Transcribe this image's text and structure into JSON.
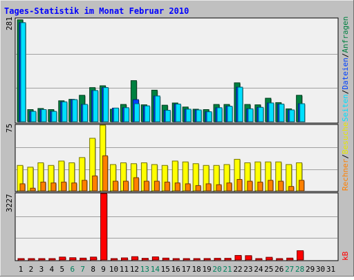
{
  "title": "Tages-Statistik im Monat Februar 2010",
  "legend": {
    "anfragen": "Anfragen",
    "dateien": "Dateien",
    "seiten": "Seiten",
    "besuche": "Besuche",
    "rechner": "Rechner",
    "kb": "kB",
    "slash": "/"
  },
  "colors": {
    "background": "#c0c0c0",
    "plot": "#f0f0f0",
    "title": "#0000ff",
    "anfragen": "#008040",
    "dateien": "#0040ff",
    "seiten": "#00e0ff",
    "besuche": "#ffff00",
    "rechner": "#ff8000",
    "kb": "#ff0000",
    "weekend_label": "#00805c",
    "weekday_label": "#000000"
  },
  "chart_data": [
    {
      "type": "bar",
      "categories": [
        "1",
        "2",
        "3",
        "4",
        "5",
        "6",
        "7",
        "8",
        "9",
        "10",
        "11",
        "12",
        "13",
        "14",
        "15",
        "16",
        "17",
        "18",
        "19",
        "20",
        "21",
        "22",
        "23",
        "24",
        "25",
        "26",
        "27",
        "28",
        "29",
        "30",
        "31"
      ],
      "weekend_days": [
        "6",
        "7",
        "13",
        "14",
        "20",
        "21",
        "27",
        "28"
      ],
      "ymax_label": "281",
      "ylim": [
        0,
        281
      ],
      "series": [
        {
          "name": "Anfragen",
          "values": [
            278,
            33,
            36,
            33,
            57,
            61,
            72,
            93,
            98,
            34,
            47,
            112,
            46,
            86,
            45,
            51,
            40,
            34,
            33,
            47,
            47,
            106,
            47,
            46,
            64,
            52,
            35,
            72,
            0,
            0,
            0
          ]
        },
        {
          "name": "Dateien",
          "values": [
            270,
            28,
            33,
            28,
            54,
            60,
            47,
            85,
            93,
            37,
            38,
            60,
            43,
            70,
            31,
            48,
            34,
            32,
            27,
            38,
            42,
            94,
            35,
            39,
            51,
            48,
            32,
            49,
            0,
            0,
            0
          ]
        },
        {
          "name": "Seiten",
          "values": [
            270,
            28,
            33,
            28,
            54,
            60,
            47,
            85,
            93,
            37,
            38,
            49,
            43,
            70,
            31,
            48,
            34,
            32,
            27,
            38,
            42,
            94,
            35,
            39,
            51,
            48,
            32,
            49,
            0,
            0,
            0
          ]
        }
      ]
    },
    {
      "type": "bar",
      "categories": [
        "1",
        "2",
        "3",
        "4",
        "5",
        "6",
        "7",
        "8",
        "9",
        "10",
        "11",
        "12",
        "13",
        "14",
        "15",
        "16",
        "17",
        "18",
        "19",
        "20",
        "21",
        "22",
        "23",
        "24",
        "25",
        "26",
        "27",
        "28",
        "29",
        "30",
        "31"
      ],
      "ymax_label": "75",
      "ylim": [
        0,
        75
      ],
      "series": [
        {
          "name": "Besuche",
          "values": [
            29,
            27,
            32,
            29,
            34,
            32,
            38,
            60,
            75,
            30,
            32,
            31,
            32,
            30,
            29,
            34,
            33,
            31,
            29,
            29,
            30,
            36,
            32,
            33,
            33,
            33,
            30,
            32,
            0,
            0,
            0
          ]
        },
        {
          "name": "Rechner",
          "values": [
            8,
            3,
            10,
            9,
            10,
            9,
            12,
            17,
            40,
            11,
            11,
            15,
            11,
            11,
            10,
            9,
            8,
            6,
            8,
            7,
            9,
            13,
            11,
            10,
            12,
            11,
            5,
            12,
            0,
            0,
            0
          ]
        }
      ]
    },
    {
      "type": "bar",
      "categories": [
        "1",
        "2",
        "3",
        "4",
        "5",
        "6",
        "7",
        "8",
        "9",
        "10",
        "11",
        "12",
        "13",
        "14",
        "15",
        "16",
        "17",
        "18",
        "19",
        "20",
        "21",
        "22",
        "23",
        "24",
        "25",
        "26",
        "27",
        "28",
        "29",
        "30",
        "31"
      ],
      "ymax_label": "3227",
      "ylim": [
        0,
        3227
      ],
      "series": [
        {
          "name": "kB",
          "values": [
            60,
            60,
            60,
            60,
            140,
            110,
            90,
            140,
            3227,
            60,
            100,
            160,
            80,
            150,
            90,
            60,
            60,
            60,
            70,
            80,
            80,
            220,
            210,
            60,
            130,
            60,
            90,
            450,
            0,
            0,
            0
          ]
        }
      ]
    }
  ]
}
